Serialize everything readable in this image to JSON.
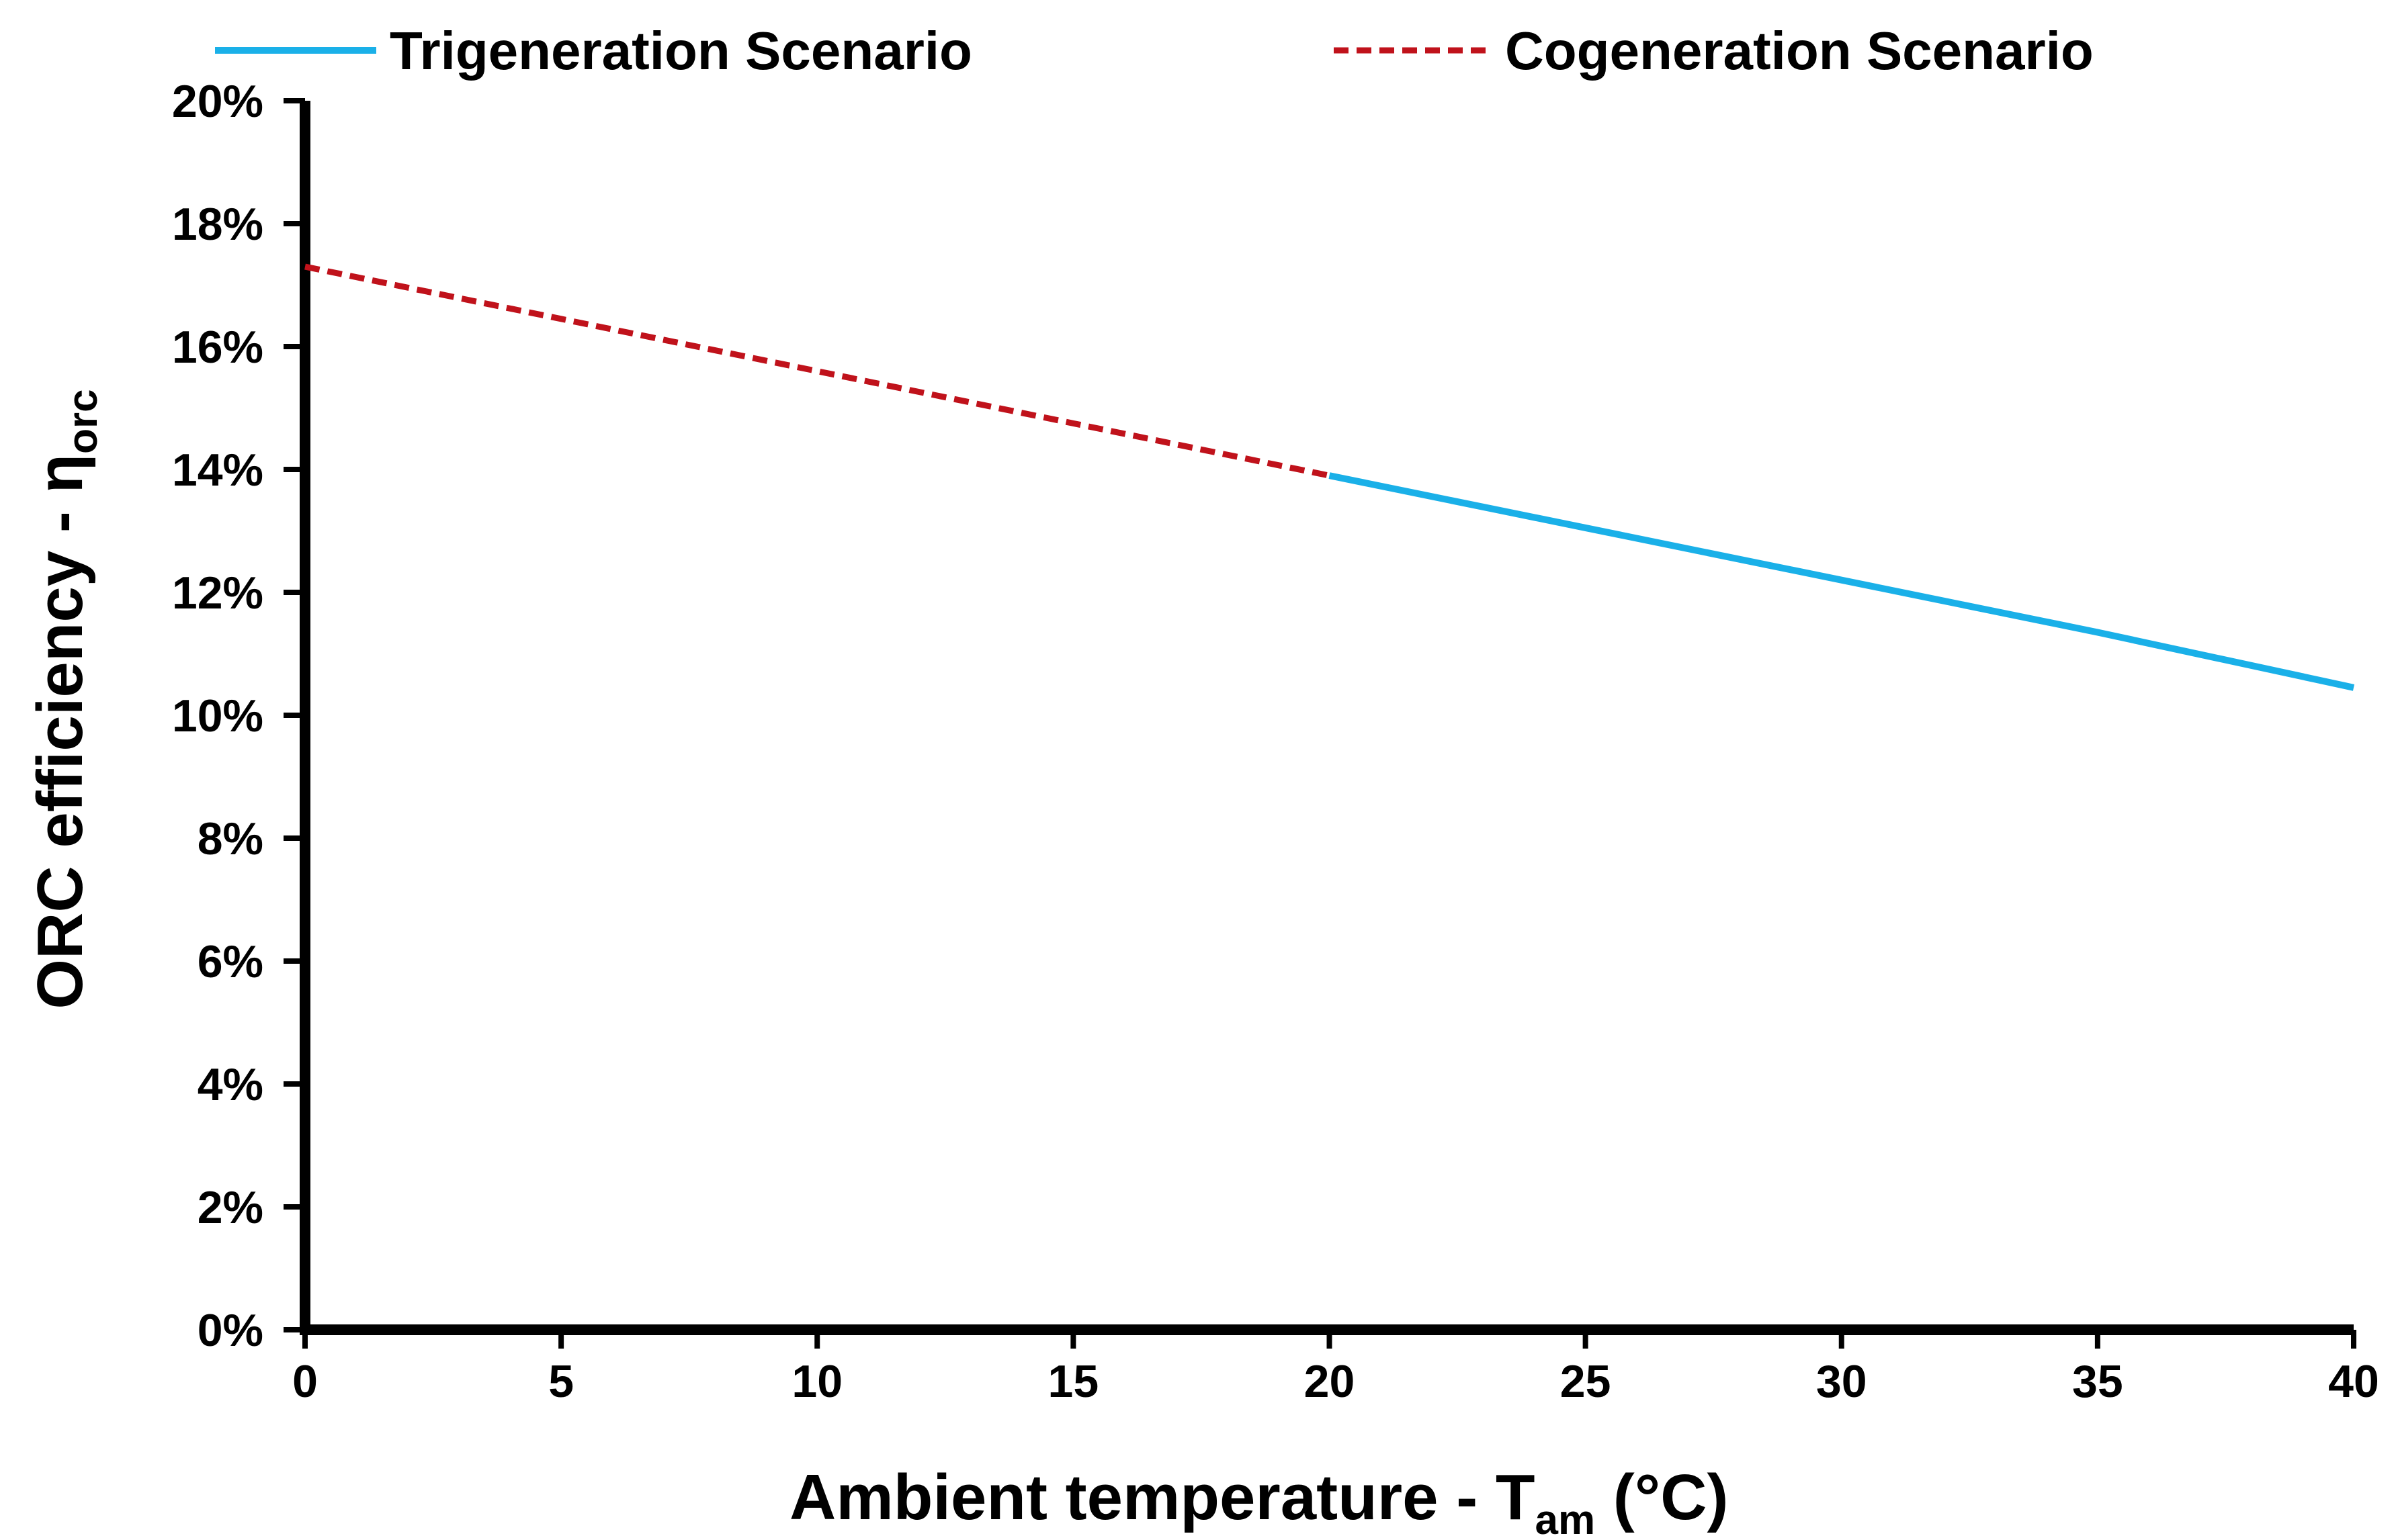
{
  "chart_data": {
    "type": "line",
    "title": "",
    "xlabel": "Ambient temperature - T",
    "xlabel_sub": "am",
    "xlabel_suffix": " (°C)",
    "ylabel": "ORC efficiency - η",
    "ylabel_sub": "orc",
    "xlim": [
      0,
      40
    ],
    "ylim": [
      0,
      0.2
    ],
    "x_ticks": [
      0,
      5,
      10,
      15,
      20,
      25,
      30,
      35,
      40
    ],
    "x_tick_labels": [
      "0",
      "5",
      "10",
      "15",
      "20",
      "25",
      "30",
      "35",
      "40"
    ],
    "y_ticks": [
      0,
      0.02,
      0.04,
      0.06,
      0.08,
      0.1,
      0.12,
      0.14,
      0.16,
      0.18,
      0.2
    ],
    "y_tick_labels": [
      "0%",
      "2%",
      "4%",
      "6%",
      "8%",
      "10%",
      "12%",
      "14%",
      "16%",
      "18%",
      "20%"
    ],
    "grid": false,
    "legend_position": "top",
    "series": [
      {
        "name": "Trigeneration Scenario",
        "style": "solid",
        "color": "#1ab0e8",
        "x": [
          20,
          25,
          30,
          35,
          40
        ],
        "y": [
          0.139,
          0.1305,
          0.122,
          0.1135,
          0.1045
        ]
      },
      {
        "name": "Cogeneration Scenario",
        "style": "dashed",
        "color": "#c0121b",
        "x": [
          0,
          5,
          10,
          15,
          20
        ],
        "y": [
          0.173,
          0.1645,
          0.156,
          0.1475,
          0.139
        ]
      }
    ]
  }
}
